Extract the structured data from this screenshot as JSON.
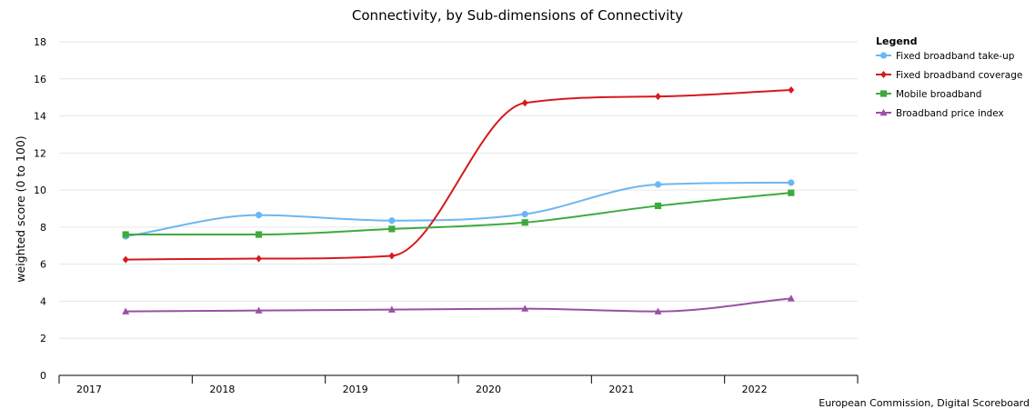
{
  "chart_data": {
    "type": "line",
    "title": "Connectivity, by Sub-dimensions of Connectivity",
    "xlabel": "",
    "ylabel": "weighted score (0 to 100)",
    "categories": [
      "2017",
      "2018",
      "2019",
      "2020",
      "2021",
      "2022"
    ],
    "ylim": [
      0,
      18
    ],
    "yticks": [
      "0",
      "2",
      "4",
      "6",
      "8",
      "10",
      "12",
      "14",
      "16",
      "18"
    ],
    "grid": true,
    "legend_title": "Legend",
    "legend_position": "top-right",
    "credit": "European Commission, Digital Scoreboard",
    "series": [
      {
        "name": "Fixed broadband take-up",
        "color": "#6cb7f2",
        "marker": "circle",
        "values": [
          7.5,
          8.65,
          8.35,
          8.7,
          10.3,
          10.4
        ]
      },
      {
        "name": "Fixed broadband coverage",
        "color": "#d7191c",
        "marker": "diamond",
        "values": [
          6.25,
          6.3,
          6.45,
          14.7,
          15.05,
          15.4
        ]
      },
      {
        "name": "Mobile broadband",
        "color": "#3eaa3e",
        "marker": "square",
        "values": [
          7.6,
          7.6,
          7.9,
          8.25,
          9.15,
          9.85
        ]
      },
      {
        "name": "Broadband price index",
        "color": "#9b4fa6",
        "marker": "triangle",
        "values": [
          3.45,
          3.5,
          3.55,
          3.6,
          3.45,
          4.15
        ]
      }
    ]
  }
}
